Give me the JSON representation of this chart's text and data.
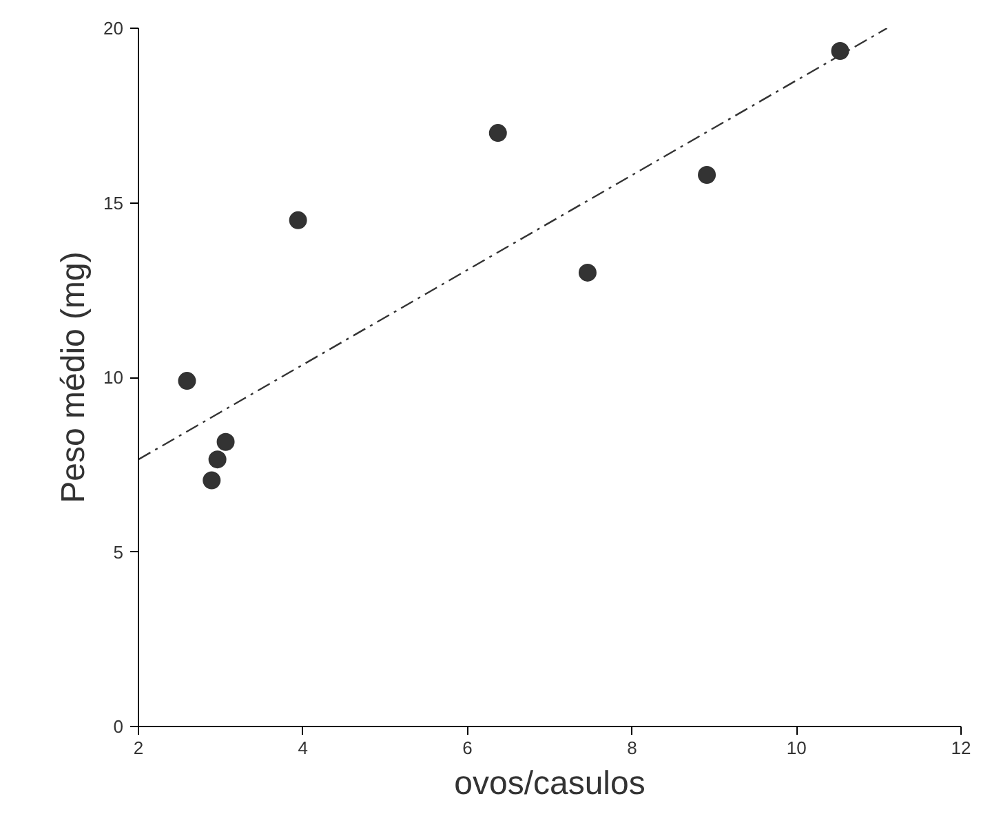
{
  "chart_data": {
    "type": "scatter",
    "xlabel": "ovos/casulos",
    "ylabel": "Peso médio (mg)",
    "xlim": [
      2,
      12
    ],
    "ylim": [
      0,
      20
    ],
    "xticks": [
      2,
      4,
      6,
      8,
      10,
      12
    ],
    "yticks": [
      0,
      5,
      10,
      15,
      20
    ],
    "grid": false,
    "series": [
      {
        "color": "#333333",
        "marker": "circle",
        "x": [
          2.59,
          3.94,
          2.89,
          2.96,
          3.06,
          6.37,
          7.46,
          8.91,
          10.53
        ],
        "values": [
          9.9,
          14.5,
          7.05,
          7.65,
          8.15,
          17.0,
          13.0,
          15.8,
          19.35
        ]
      },
      {
        "type": "line",
        "color": "#333333",
        "line_style": "dashdot",
        "x": [
          2,
          11.1
        ],
        "values": [
          7.65,
          20
        ]
      }
    ]
  }
}
